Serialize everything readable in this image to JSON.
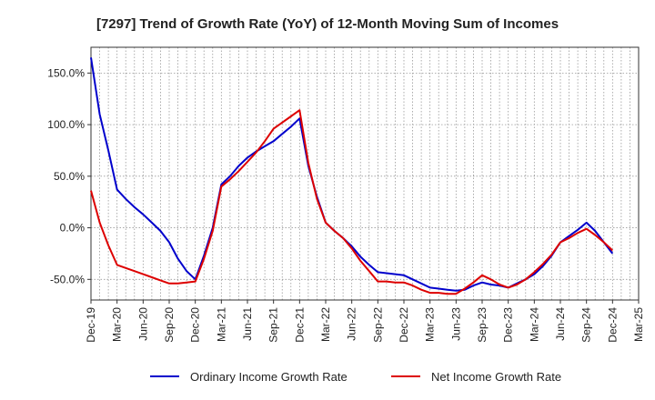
{
  "chart_data": {
    "type": "line",
    "title": "[7297]  Trend of Growth Rate (YoY) of 12-Month Moving Sum of Incomes",
    "xlabel": "",
    "ylabel": "",
    "x": [
      "Dec-19",
      "Jan-20",
      "Feb-20",
      "Mar-20",
      "Apr-20",
      "May-20",
      "Jun-20",
      "Jul-20",
      "Aug-20",
      "Sep-20",
      "Oct-20",
      "Nov-20",
      "Dec-20",
      "Jan-21",
      "Feb-21",
      "Mar-21",
      "Apr-21",
      "May-21",
      "Jun-21",
      "Jul-21",
      "Aug-21",
      "Sep-21",
      "Oct-21",
      "Nov-21",
      "Dec-21",
      "Jan-22",
      "Feb-22",
      "Mar-22",
      "Apr-22",
      "May-22",
      "Jun-22",
      "Jul-22",
      "Aug-22",
      "Sep-22",
      "Oct-22",
      "Nov-22",
      "Dec-22",
      "Jan-23",
      "Feb-23",
      "Mar-23",
      "Apr-23",
      "May-23",
      "Jun-23",
      "Jul-23",
      "Aug-23",
      "Sep-23",
      "Oct-23",
      "Nov-23",
      "Dec-23",
      "Jan-24",
      "Feb-24",
      "Mar-24",
      "Apr-24",
      "May-24",
      "Jun-24",
      "Jul-24",
      "Aug-24",
      "Sep-24",
      "Oct-24",
      "Nov-24",
      "Dec-24",
      "Jan-25",
      "Feb-25",
      "Mar-25"
    ],
    "x_tick_labels": [
      "Dec-19",
      "Mar-20",
      "Jun-20",
      "Sep-20",
      "Dec-20",
      "Mar-21",
      "Jun-21",
      "Sep-21",
      "Dec-21",
      "Mar-22",
      "Jun-22",
      "Sep-22",
      "Dec-22",
      "Mar-23",
      "Jun-23",
      "Sep-23",
      "Dec-23",
      "Mar-24",
      "Jun-24",
      "Sep-24",
      "Dec-24",
      "Mar-25"
    ],
    "y_tick_labels": [
      "-50.0%",
      "0.0%",
      "50.0%",
      "100.0%",
      "150.0%"
    ],
    "y_ticks": [
      -50,
      0,
      50,
      100,
      150
    ],
    "ylim": [
      -70,
      175
    ],
    "grid": true,
    "legend_position": "bottom",
    "series": [
      {
        "name": "Ordinary Income Growth Rate",
        "color": "#0000cc",
        "values": [
          165,
          110,
          75,
          37,
          28,
          20,
          13,
          5,
          -3,
          -14,
          -30,
          -42,
          -50,
          -27,
          0,
          42,
          50,
          60,
          68,
          74,
          79,
          84,
          91,
          98,
          106,
          60,
          30,
          5,
          -3,
          -10,
          -18,
          -28,
          -36,
          -43,
          -44,
          -45,
          -46,
          -50,
          -54,
          -58,
          -59,
          -60,
          -61,
          -60,
          -56,
          -53,
          -55,
          -56,
          -58,
          -54,
          -50,
          -45,
          -37,
          -27,
          -14,
          -8,
          -2,
          5,
          -3,
          -14,
          -25,
          null,
          null,
          null
        ]
      },
      {
        "name": "Net Income Growth Rate",
        "color": "#dd0000",
        "values": [
          36,
          5,
          -17,
          -36,
          -39,
          -42,
          -45,
          -48,
          -51,
          -54,
          -54,
          -53,
          -52,
          -30,
          -3,
          40,
          47,
          55,
          64,
          73,
          84,
          96,
          102,
          108,
          114,
          63,
          28,
          5,
          -3,
          -10,
          -20,
          -32,
          -42,
          -52,
          -52,
          -53,
          -53,
          -56,
          -60,
          -63,
          -63,
          -64,
          -64,
          -59,
          -53,
          -46,
          -50,
          -55,
          -58,
          -55,
          -50,
          -43,
          -35,
          -26,
          -14,
          -10,
          -5,
          -1,
          -7,
          -14,
          -22,
          null,
          null,
          null
        ]
      }
    ]
  }
}
